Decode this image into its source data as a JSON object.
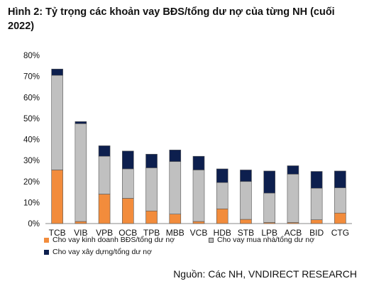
{
  "title": "Hình 2: Tỷ trọng các khoản vay BĐS/tổng dư nợ của từng NH (cuối 2022)",
  "source": "Nguồn: Các NH, VNDIRECT RESEARCH",
  "colors": {
    "series0": "#f28c3c",
    "series1": "#c0c0c0",
    "series2": "#0d1f4e",
    "outline": "#555555"
  },
  "chart_data": {
    "type": "bar",
    "stacked": true,
    "categories": [
      "TCB",
      "VIB",
      "VPB",
      "OCB",
      "TPB",
      "MBB",
      "VCB",
      "HDB",
      "STB",
      "LPB",
      "ACB",
      "BID",
      "CTG"
    ],
    "series": [
      {
        "name": "Cho vay kinh doanh BĐS/tổng dư nợ",
        "values": [
          25.5,
          1.0,
          14.0,
          12.0,
          6.0,
          4.5,
          1.0,
          7.0,
          2.0,
          0.5,
          0.5,
          1.8,
          5.0
        ]
      },
      {
        "name": "Cho vay mua nhà/tổng dư nợ",
        "values": [
          45.0,
          46.5,
          18.0,
          14.0,
          20.5,
          25.0,
          24.5,
          12.5,
          18.0,
          14.0,
          23.0,
          15.0,
          12.0
        ]
      },
      {
        "name": "Cho vay xây dựng/tổng dư nợ",
        "values": [
          3.0,
          1.0,
          5.0,
          8.5,
          6.5,
          5.5,
          6.5,
          6.5,
          5.5,
          10.5,
          4.0,
          8.0,
          8.0
        ]
      }
    ],
    "ylim": [
      0,
      80
    ],
    "yticks": [
      "0%",
      "10%",
      "20%",
      "30%",
      "40%",
      "50%",
      "60%",
      "70%",
      "80%"
    ],
    "grid": false,
    "legend_position": "bottom"
  }
}
